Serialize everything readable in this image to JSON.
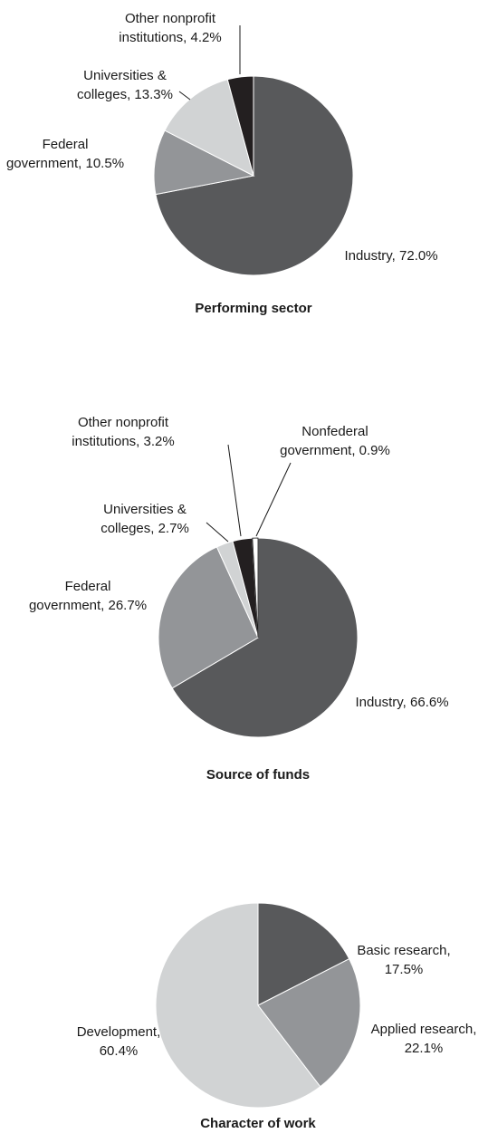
{
  "chart_data": [
    {
      "type": "pie",
      "title": "Performing sector",
      "slices": [
        {
          "label": [
            "Industry, 72.0%"
          ],
          "value": 72.0,
          "color": "#58595b"
        },
        {
          "label": [
            "Federal",
            "government, 10.5%"
          ],
          "value": 10.5,
          "color": "#939598"
        },
        {
          "label": [
            "Universities &",
            "colleges, 13.3%"
          ],
          "value": 13.3,
          "color": "#d1d3d4"
        },
        {
          "label": [
            "Other nonprofit",
            "institutions, 4.2%"
          ],
          "value": 4.2,
          "color": "#231f20"
        }
      ]
    },
    {
      "type": "pie",
      "title": "Source of funds",
      "slices": [
        {
          "label": [
            "Industry, 66.6%"
          ],
          "value": 66.6,
          "color": "#58595b"
        },
        {
          "label": [
            "Federal",
            "government, 26.7%"
          ],
          "value": 26.7,
          "color": "#939598"
        },
        {
          "label": [
            "Universities &",
            "colleges, 2.7%"
          ],
          "value": 2.7,
          "color": "#d1d3d4"
        },
        {
          "label": [
            "Other nonprofit",
            "institutions, 3.2%"
          ],
          "value": 3.2,
          "color": "#231f20"
        },
        {
          "label": [
            "Nonfederal",
            "government, 0.9%"
          ],
          "value": 0.9,
          "color": "#ffffff"
        }
      ]
    },
    {
      "type": "pie",
      "title": "Character of work",
      "slices": [
        {
          "label": [
            "Basic research,",
            "17.5%"
          ],
          "value": 17.5,
          "color": "#58595b"
        },
        {
          "label": [
            "Applied research,",
            "22.1%"
          ],
          "value": 22.1,
          "color": "#939598"
        },
        {
          "label": [
            "Development,",
            "60.4%"
          ],
          "value": 60.4,
          "color": "#d1d3d4"
        }
      ]
    }
  ]
}
